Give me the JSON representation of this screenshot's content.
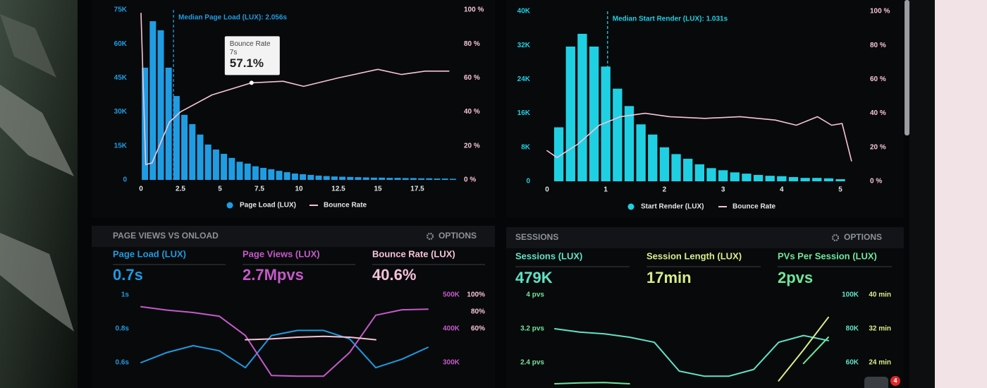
{
  "chart_data": [
    {
      "type": "bar",
      "series": [
        {
          "name": "Page Load (LUX)",
          "type": "bar",
          "color": "#1f9de3",
          "axis": "y",
          "x": [
            0.25,
            0.75,
            1.25,
            1.75,
            2.25,
            2.75,
            3.25,
            3.75,
            4.25,
            4.75,
            5.25,
            5.75,
            6.25,
            6.75,
            7.25,
            7.75,
            8.25,
            8.75,
            9.25,
            9.75,
            10.25,
            10.75,
            11.25,
            11.75,
            12.25,
            12.75,
            13.25,
            13.75,
            14.25,
            14.75,
            15.25,
            15.75,
            16.25,
            16.75,
            17.25,
            17.75,
            18.25,
            18.75,
            19.25,
            19.75
          ],
          "values": [
            49500,
            70000,
            66000,
            49500,
            37000,
            28700,
            24600,
            20000,
            15600,
            13400,
            11500,
            9700,
            8000,
            7200,
            6000,
            5300,
            4700,
            4000,
            3400,
            2800,
            2500,
            2200,
            1900,
            1700,
            1500,
            1400,
            1300,
            1200,
            1100,
            1000,
            1000,
            900,
            900,
            800,
            800,
            700,
            700,
            600,
            600,
            500
          ]
        },
        {
          "name": "Bounce Rate",
          "type": "line",
          "color": "#f6c4d6",
          "axis": "y2",
          "x": [
            0,
            0.3,
            0.7,
            1.8,
            2.5,
            4.5,
            7,
            9,
            10.3,
            12.5,
            15,
            16.5,
            18,
            19.5
          ],
          "values": [
            98,
            9,
            10,
            34,
            40,
            50,
            57.1,
            58,
            55,
            60,
            65,
            62,
            64,
            64
          ]
        }
      ],
      "xlim": [
        0,
        20
      ],
      "xticks": [
        0,
        2.5,
        5,
        7.5,
        10,
        12.5,
        15,
        17.5
      ],
      "ylim": [
        0,
        75000
      ],
      "yticks": [
        0,
        {
          "value": 15000,
          "label": "15K"
        },
        {
          "value": 30000,
          "label": "30K"
        },
        {
          "value": 45000,
          "label": "45K"
        },
        {
          "value": 60000,
          "label": "60K"
        },
        {
          "value": 75000,
          "label": "75K"
        }
      ],
      "y2lim": [
        0,
        100
      ],
      "y2ticks": [
        {
          "value": 0,
          "label": "0 %"
        },
        {
          "value": 20,
          "label": "20 %"
        },
        {
          "value": 40,
          "label": "40 %"
        },
        {
          "value": 60,
          "label": "60 %"
        },
        {
          "value": 80,
          "label": "80 %"
        },
        {
          "value": 100,
          "label": "100 %"
        }
      ],
      "median": {
        "value": 2.056,
        "label": "Median Page Load (LUX): 2.056s"
      },
      "annotation": {
        "title": "Bounce Rate",
        "x": 7,
        "x_label": "7s",
        "value": 57.1,
        "value_label": "57.1%"
      }
    },
    {
      "type": "bar",
      "series": [
        {
          "name": "Start Render (LUX)",
          "type": "bar",
          "color": "#1fd0e3",
          "axis": "y",
          "x": [
            0.2,
            0.4,
            0.6,
            0.8,
            1.0,
            1.2,
            1.4,
            1.6,
            1.8,
            2.0,
            2.2,
            2.4,
            2.6,
            2.8,
            3.0,
            3.2,
            3.4,
            3.6,
            3.8,
            4.0,
            4.2,
            4.4,
            4.6,
            4.8,
            5.0
          ],
          "values": [
            12700,
            31700,
            34700,
            31700,
            27000,
            21800,
            17700,
            13400,
            11000,
            8000,
            6400,
            5300,
            4000,
            3100,
            2600,
            2100,
            1800,
            1500,
            1300,
            1200,
            1000,
            800,
            800,
            700,
            500
          ]
        },
        {
          "name": "Bounce Rate",
          "type": "line",
          "color": "#f6c4d6",
          "axis": "y2",
          "x": [
            0,
            0.17,
            0.53,
            0.89,
            1.25,
            1.67,
            2.09,
            2.69,
            3.29,
            3.89,
            4.25,
            4.61,
            4.85,
            5.03,
            5.19
          ],
          "values": [
            18,
            14,
            22,
            33,
            38,
            40,
            38,
            37,
            38,
            36,
            33,
            38,
            33,
            34,
            12
          ]
        }
      ],
      "xlim": [
        0,
        5.3
      ],
      "xticks": [
        0,
        1,
        2,
        3,
        4,
        5
      ],
      "ylim": [
        0,
        40000
      ],
      "yticks": [
        0,
        {
          "value": 8000,
          "label": "8K"
        },
        {
          "value": 16000,
          "label": "16K"
        },
        {
          "value": 24000,
          "label": "24K"
        },
        {
          "value": 32000,
          "label": "32K"
        },
        {
          "value": 40000,
          "label": "40K"
        }
      ],
      "y2lim": [
        0,
        100
      ],
      "y2ticks": [
        {
          "value": 0,
          "label": "0 %"
        },
        {
          "value": 20,
          "label": "20 %"
        },
        {
          "value": 40,
          "label": "40 %"
        },
        {
          "value": 60,
          "label": "60 %"
        },
        {
          "value": 80,
          "label": "80 %"
        },
        {
          "value": 100,
          "label": "100 %"
        }
      ],
      "median": {
        "value": 1.031,
        "label": "Median Start Render (LUX): 1.031s"
      }
    },
    {
      "type": "line",
      "title": "PAGE VIEWS VS ONLOAD",
      "options": "OPTIONS",
      "categories": [
        null,
        null,
        null,
        null,
        null,
        null,
        null,
        null,
        null,
        null,
        null,
        null
      ],
      "series": [
        {
          "name": "Page Load (LUX)",
          "summary": "0.7s",
          "color": "#1e9be0",
          "axis": "y",
          "values": [
            0.6,
            0.66,
            0.7,
            0.67,
            0.57,
            0.76,
            0.79,
            0.79,
            0.74,
            0.57,
            0.62,
            0.69
          ]
        },
        {
          "name": "Page Views (LUX)",
          "summary": "2.7Mpvs",
          "color": "#c45ac8",
          "axis": "y2",
          "values": [
            465000,
            455000,
            448000,
            437000,
            380000,
            262000,
            260000,
            260000,
            330000,
            440000,
            456000,
            458000
          ]
        },
        {
          "name": "Bounce Rate (LUX)",
          "summary": "40.6%",
          "color": "#f5c2d8",
          "axis": "y3",
          "values": [
            null,
            null,
            null,
            null,
            47,
            48,
            50,
            51,
            50,
            47,
            null,
            null
          ]
        }
      ],
      "ylim": [
        0.4625,
        1
      ],
      "yticks": [
        {
          "value": 0.6,
          "label": "0.6s"
        },
        {
          "value": 0.8,
          "label": "0.8s"
        },
        {
          "value": 1,
          "label": "1s"
        }
      ],
      "y2lim": [
        231250,
        500000
      ],
      "y2ticks": [
        {
          "value": 300000,
          "label": "300K"
        },
        {
          "value": 400000,
          "label": "400K"
        },
        {
          "value": 500000,
          "label": "500K"
        }
      ],
      "y3lim": [
        -7.5,
        100
      ],
      "y3ticks": [
        {
          "value": 60,
          "label": "60%"
        },
        {
          "value": 80,
          "label": "80%"
        },
        {
          "value": 100,
          "label": "100%"
        }
      ]
    },
    {
      "type": "line",
      "title": "SESSIONS",
      "options": "OPTIONS",
      "categories": [
        null,
        null,
        null,
        null,
        null,
        null,
        null,
        null,
        null,
        null,
        null,
        null
      ],
      "series": [
        {
          "name": "Sessions (LUX)",
          "summary": "479K",
          "color": "#5fe3c6",
          "axis": "y2",
          "values": [
            80000,
            78000,
            77000,
            75000,
            72000,
            55000,
            52000,
            52000,
            56000,
            72000,
            76000,
            73000
          ]
        },
        {
          "name": "Session Length (LUX)",
          "summary": "17min",
          "color": "#d6ef8a",
          "axis": "y3",
          "values": [
            null,
            null,
            null,
            null,
            null,
            null,
            null,
            null,
            null,
            19.7,
            27,
            34.7
          ]
        },
        {
          "name": "PVs Per Session (LUX)",
          "summary": "2pvs",
          "color": "#6fe79b",
          "axis": "y",
          "values": [
            1.9,
            1.92,
            1.93,
            1.9,
            null,
            null,
            null,
            null,
            null,
            null,
            2.38,
            3.0
          ]
        }
      ],
      "ylim": [
        1.85,
        4
      ],
      "yticks": [
        {
          "value": 2.4,
          "label": "2.4 pvs"
        },
        {
          "value": 3.2,
          "label": "3.2 pvs"
        },
        {
          "value": 4,
          "label": "4 pvs"
        }
      ],
      "y2lim": [
        46250,
        100000
      ],
      "y2ticks": [
        {
          "value": 60000,
          "label": "60K"
        },
        {
          "value": 80000,
          "label": "80K"
        },
        {
          "value": 100000,
          "label": "100K"
        }
      ],
      "y3lim": [
        18.5,
        40
      ],
      "y3ticks": [
        {
          "value": 24,
          "label": "24 min"
        },
        {
          "value": 32,
          "label": "32 min"
        },
        {
          "value": 40,
          "label": "40 min"
        }
      ]
    }
  ],
  "badge": {
    "count": "4"
  }
}
